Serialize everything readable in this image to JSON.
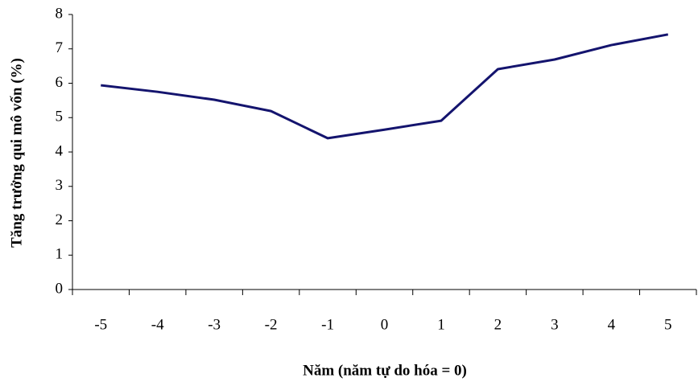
{
  "chart_data": {
    "type": "line",
    "x_label": "Năm (năm tự do hóa = 0)",
    "y_label": "Tăng trưởng qui mô vốn (%)",
    "categories": [
      "-5",
      "-4",
      "-3",
      "-2",
      "-1",
      "0",
      "1",
      "2",
      "3",
      "4",
      "5"
    ],
    "series": [
      {
        "name": "Tăng trưởng",
        "color": "#14146e",
        "values": [
          5.94,
          5.75,
          5.52,
          5.19,
          4.4,
          4.65,
          4.91,
          6.41,
          6.69,
          7.11,
          7.42
        ]
      }
    ],
    "ylim": [
      0,
      8
    ],
    "yticks": [
      0,
      1,
      2,
      3,
      4,
      5,
      6,
      7,
      8
    ],
    "grid": false
  }
}
